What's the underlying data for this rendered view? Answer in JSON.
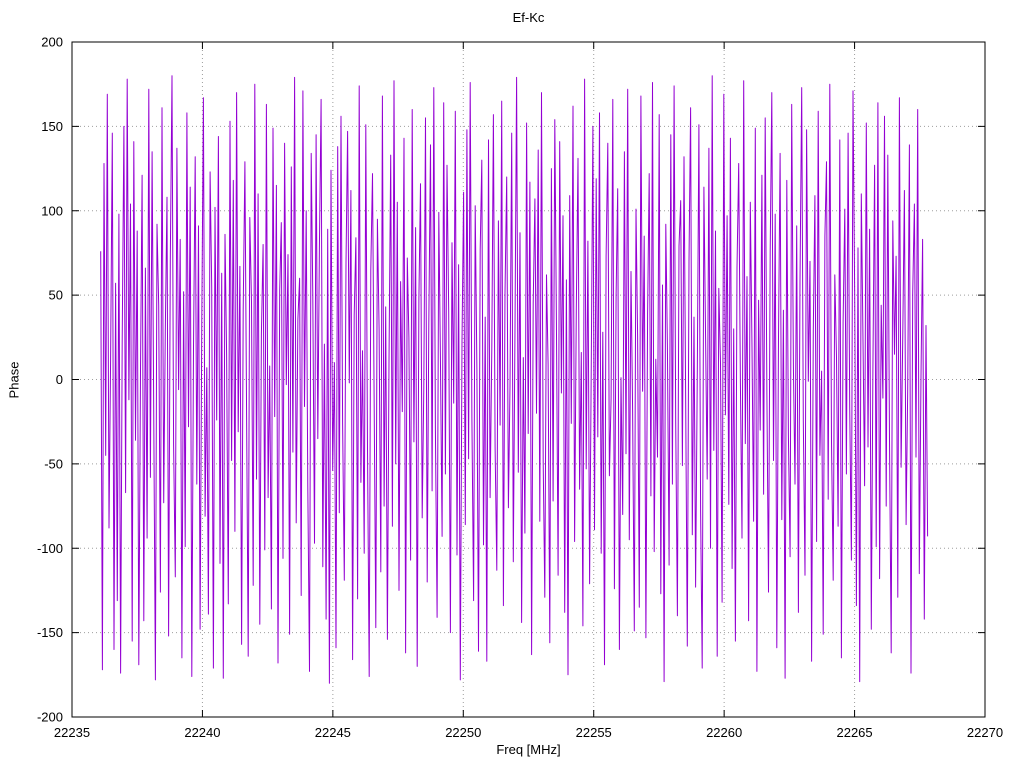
{
  "title": "Ef-Kc",
  "axes": {
    "xlabel": "Freq [MHz]",
    "ylabel": "Phase",
    "x_ticks": [
      22235,
      22240,
      22245,
      22250,
      22255,
      22260,
      22265,
      22270
    ],
    "y_ticks": [
      200,
      150,
      100,
      50,
      0,
      -50,
      -100,
      -150,
      -200
    ]
  },
  "colors": {
    "line": "#9400d3",
    "grid": "#9e9e9e",
    "axis": "#000000",
    "background": "#ffffff"
  },
  "chart_data": {
    "type": "line",
    "title": "Ef-Kc",
    "xlabel": "Freq [MHz]",
    "ylabel": "Phase",
    "xlim": [
      22235,
      22270
    ],
    "ylim": [
      -200,
      200
    ],
    "grid": true,
    "legend": "none",
    "x_start": 22236.1,
    "x_end": 22267.8,
    "series": [
      {
        "name": "Ef-Kc phase",
        "values": [
          76,
          -172,
          128,
          -45,
          169,
          -88,
          12,
          146,
          -160,
          57,
          -131,
          98,
          -174,
          23,
          150,
          -67,
          178,
          -12,
          104,
          -155,
          141,
          -36,
          88,
          -169,
          5,
          121,
          -143,
          66,
          -94,
          172,
          -58,
          135,
          -17,
          -178,
          92,
          44,
          -126,
          161,
          -73,
          29,
          108,
          -152,
          71,
          180,
          -39,
          -117,
          137,
          -6,
          83,
          -165,
          52,
          -99,
          158,
          -28,
          114,
          -176,
          19,
          132,
          -62,
          91,
          -148,
          34,
          167,
          -81,
          7,
          -139,
          123,
          55,
          -171,
          102,
          -24,
          144,
          -109,
          63,
          -177,
          86,
          15,
          -133,
          153,
          -48,
          118,
          -90,
          170,
          -31,
          67,
          -157,
          41,
          129,
          -13,
          -164,
          96,
          46,
          -122,
          175,
          -59,
          110,
          -145,
          27,
          80,
          -101,
          163,
          -70,
          8,
          -136,
          149,
          -22,
          115,
          -168,
          53,
          93,
          -106,
          140,
          -3,
          74,
          -151,
          126,
          -43,
          179,
          -85,
          36,
          60,
          -128,
          171,
          -16,
          100,
          -64,
          -173,
          134,
          49,
          -97,
          145,
          -35,
          78,
          166,
          -111,
          21,
          -142,
          89,
          -180,
          124,
          -54,
          10,
          -159,
          138,
          -79,
          156,
          -26,
          -119,
          69,
          147,
          -2,
          112,
          -166,
          38,
          84,
          -130,
          174,
          -61,
          17,
          -103,
          151,
          -41,
          -176,
          65,
          122,
          -9,
          -147,
          95,
          30,
          -114,
          168,
          -75,
          43,
          -154,
          11,
          133,
          -87,
          177,
          -50,
          105,
          -125,
          58,
          -19,
          143,
          -162,
          72,
          25,
          -107,
          160,
          -37,
          90,
          -170,
          48,
          116,
          -82,
          -5,
          155,
          -120,
          33,
          139,
          -66,
          173,
          -29,
          -141,
          99,
          14,
          -93,
          164,
          -56,
          127,
          40,
          -150,
          81,
          -14,
          159,
          -104,
          68,
          -178,
          22,
          111,
          -86,
          148,
          -47,
          176,
          -23,
          -131,
          103,
          6,
          -161,
          77,
          130,
          -98,
          37,
          -167,
          142,
          -70,
          18,
          157,
          -40,
          -113,
          94,
          -27,
          165,
          -134,
          51,
          120,
          -76,
          -4,
          146,
          -108,
          31,
          179,
          -55,
          87,
          -144,
          13,
          -91,
          152,
          -32,
          117,
          -163,
          45,
          107,
          -20,
          136,
          -84,
          170,
          -49,
          -129,
          62,
          9,
          -156,
          125,
          -72,
          154,
          35,
          -116,
          141,
          -8,
          97,
          -138,
          59,
          -175,
          109,
          -26,
          162,
          -96,
          42,
          131,
          -65,
          16,
          -146,
          178,
          -53,
          82,
          -121,
          3,
          150,
          -89,
          119,
          -34,
          158,
          -103,
          28,
          -169,
          73,
          140,
          -57,
          -11,
          166,
          -124,
          50,
          113,
          -160,
          1,
          -80,
          135,
          -44,
          172,
          -95,
          64,
          -18,
          -149,
          101,
          26,
          -135,
          168,
          -7,
          85,
          -153,
          39,
          122,
          -69,
          176,
          -102,
          12,
          -46,
          157,
          -127,
          56,
          -179,
          92,
          20,
          -110,
          145,
          -62,
          174,
          -25,
          -140,
          79,
          106,
          -51,
          132,
          -15,
          -158,
          70,
          161,
          -92,
          37,
          -123,
          4,
          151,
          -78,
          -171,
          114,
          24,
          -59,
          137,
          -100,
          180,
          -42,
          88,
          -164,
          54,
          10,
          -132,
          169,
          -21,
          97,
          -74,
          143,
          -112,
          30,
          -155,
          66,
          128,
          -2,
          -94,
          177,
          -38,
          61,
          -143,
          105,
          19,
          -84,
          149,
          -173,
          47,
          -30,
          121,
          -68,
          155,
          -9,
          -126,
          76,
          170,
          -48,
          98,
          -159,
          25,
          134,
          -83,
          41,
          -177,
          118,
          -33,
          -105,
          163,
          8,
          -62,
          91,
          -138,
          58,
          173,
          -24,
          -116,
          148,
          -1,
          70,
          -167,
          29,
          109,
          -96,
          159,
          -45,
          5,
          -151,
          85,
          129,
          -71,
          175,
          -37,
          -119,
          62,
          13,
          -87,
          142,
          -165,
          34,
          101,
          -56,
          146,
          -16,
          -107,
          171,
          49,
          -134,
          78,
          -179,
          110,
          23,
          -63,
          152,
          -40,
          89,
          -148,
          6,
          127,
          -99,
          164,
          -118,
          44,
          -11,
          156,
          -75,
          133,
          -36,
          -162,
          94,
          15,
          73,
          -129,
          167,
          -52,
          28,
          112,
          -86,
          -6,
          139,
          -174,
          51,
          104,
          -46,
          160,
          -115,
          2,
          83,
          -142,
          32,
          -93
        ]
      }
    ]
  }
}
